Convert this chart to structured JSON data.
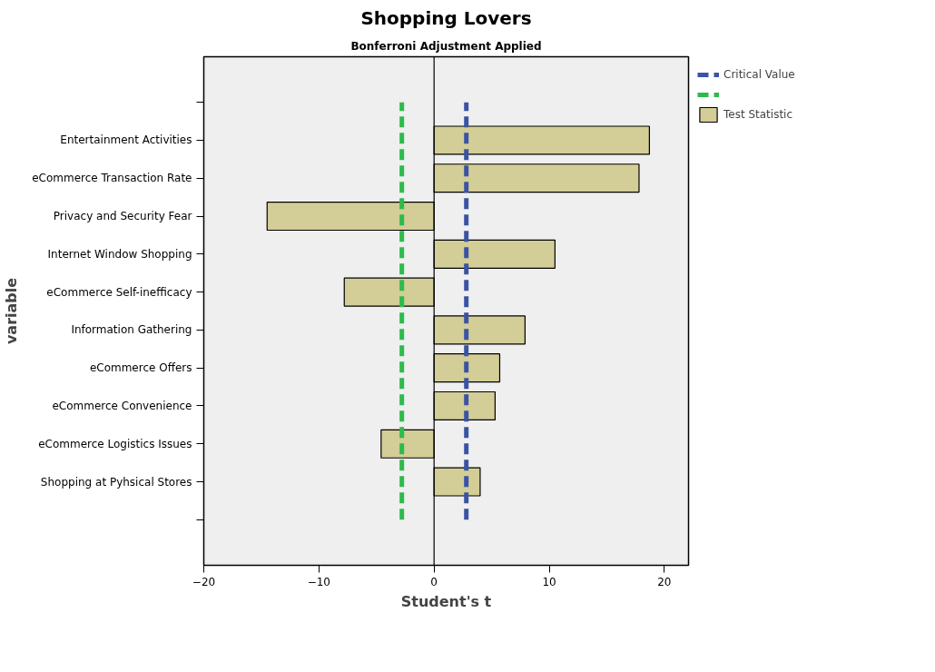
{
  "chart_data": {
    "type": "bar",
    "orientation": "horizontal",
    "title": "Shopping Lovers",
    "subtitle": "Bonferroni Adjustment Applied",
    "xlabel": "Student's t",
    "ylabel": "variable",
    "categories": [
      null,
      "Entertainment Activities",
      "eCommerce Transaction Rate",
      "Privacy and Security Fear",
      "Internet Window Shopping",
      "eCommerce Self-inefficacy",
      "Information Gathering",
      "eCommerce Offers",
      "eCommerce Convenience",
      "eCommerce Logistics Issues",
      "Shopping at Pyhsical Stores",
      null
    ],
    "series": [
      {
        "name": "Test Statistic",
        "color": "#d3cd97",
        "values": [
          null,
          18.7,
          17.8,
          -14.5,
          10.5,
          -7.8,
          7.9,
          5.7,
          5.3,
          -4.6,
          4.0,
          null
        ]
      }
    ],
    "xlim": [
      -20,
      22.1
    ],
    "xticks": [
      -20,
      -10,
      0,
      10,
      20
    ],
    "ref_lines": [
      {
        "axis": "x",
        "value": 2.8,
        "label": "Critical Value",
        "color": "#3a53a4",
        "line_style": "dashed"
      },
      {
        "axis": "x",
        "value": -2.8,
        "label": null,
        "color": "#2dbb4b",
        "line_style": "dashed"
      },
      {
        "axis": "x",
        "value": 0,
        "color": "#000000",
        "line_style": "solid"
      }
    ],
    "grid": false,
    "legend": "right"
  }
}
